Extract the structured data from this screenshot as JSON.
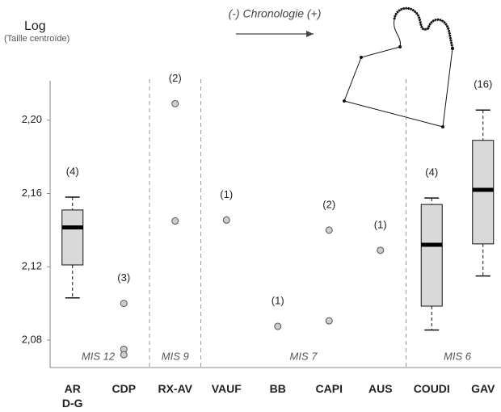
{
  "chart_data": {
    "type": "box",
    "title": "Log",
    "subtitle": "(Taille centroïde)",
    "annotation": "(-) Chronologie (+)",
    "ylim": [
      2.065,
      2.2215
    ],
    "yticks": [
      {
        "value": 2.08,
        "label": "2,08"
      },
      {
        "value": 2.12,
        "label": "2,12"
      },
      {
        "value": 2.16,
        "label": "2,16"
      },
      {
        "value": 2.2,
        "label": "2,20"
      }
    ],
    "box_color": "#d9d9d9",
    "point_color": "#cccccc",
    "groups": [
      {
        "label": "MIS 12",
        "items": [
          {
            "name": [
              "AR",
              "D-G"
            ],
            "n_label": "(4)",
            "box": {
              "whislo": 2.103,
              "q1": 2.121,
              "med": 2.1415,
              "q3": 2.151,
              "whishi": 2.158
            }
          },
          {
            "name": [
              "CDP"
            ],
            "n_label": "(3)",
            "points": [
              2.1,
              2.075,
              2.072
            ]
          }
        ]
      },
      {
        "label": "MIS 9",
        "items": [
          {
            "name": [
              "RX-AV"
            ],
            "n_label": "(2)",
            "points": [
              2.209,
              2.145
            ]
          }
        ]
      },
      {
        "label": "MIS 7",
        "items": [
          {
            "name": [
              "VAUF"
            ],
            "n_label": "(1)",
            "points": [
              2.1455
            ]
          },
          {
            "name": [
              "BB"
            ],
            "n_label": "(1)",
            "points": [
              2.0875
            ]
          },
          {
            "name": [
              "CAPI"
            ],
            "n_label": "(2)",
            "points": [
              2.14,
              2.0905
            ]
          },
          {
            "name": [
              "AUS"
            ],
            "n_label": "(1)",
            "points": [
              2.129
            ]
          }
        ]
      },
      {
        "label": "MIS 6",
        "items": [
          {
            "name": [
              "COUDI"
            ],
            "n_label": "(4)",
            "box": {
              "whislo": 2.0855,
              "q1": 2.0985,
              "med": 2.132,
              "q3": 2.154,
              "whishi": 2.1575
            }
          },
          {
            "name": [
              "GAV"
            ],
            "n_label": "(16)",
            "box": {
              "whislo": 2.115,
              "q1": 2.1325,
              "med": 2.162,
              "q3": 2.189,
              "whishi": 2.2055
            }
          }
        ]
      }
    ]
  }
}
